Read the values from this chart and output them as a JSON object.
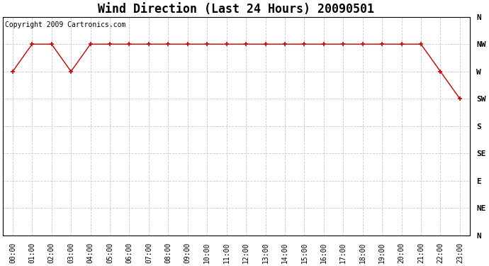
{
  "title": "Wind Direction (Last 24 Hours) 20090501",
  "copyright_text": "Copyright 2009 Cartronics.com",
  "background_color": "#ffffff",
  "plot_bg_color": "#ffffff",
  "grid_color": "#c8c8c8",
  "line_color": "#cc0000",
  "marker_color": "#cc0000",
  "x_labels": [
    "00:00",
    "01:00",
    "02:00",
    "03:00",
    "04:00",
    "05:00",
    "06:00",
    "07:00",
    "08:00",
    "09:00",
    "10:00",
    "11:00",
    "12:00",
    "13:00",
    "14:00",
    "15:00",
    "16:00",
    "17:00",
    "18:00",
    "19:00",
    "20:00",
    "21:00",
    "22:00",
    "23:00"
  ],
  "y_labels": [
    "N",
    "NW",
    "W",
    "SW",
    "S",
    "SE",
    "E",
    "NE",
    "N"
  ],
  "y_ticks": [
    8,
    7,
    6,
    5,
    4,
    3,
    2,
    1,
    0
  ],
  "wind_data": [
    6,
    7,
    7,
    6,
    7,
    7,
    7,
    7,
    7,
    7,
    7,
    7,
    7,
    7,
    7,
    7,
    7,
    7,
    7,
    7,
    7,
    7,
    6,
    5
  ],
  "title_fontsize": 12,
  "copyright_fontsize": 7,
  "ylabel_fontsize": 8,
  "xlabel_fontsize": 7
}
